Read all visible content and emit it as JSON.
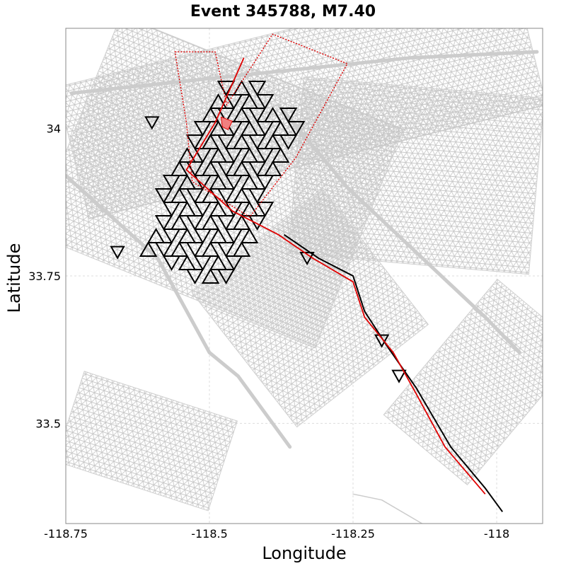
{
  "chart_data": {
    "type": "map",
    "title": "Event 345788, M7.40",
    "xlabel": "Longitude",
    "ylabel": "Latitude",
    "xlim": [
      -118.75,
      -117.92
    ],
    "ylim": [
      33.33,
      34.17
    ],
    "x_ticks": [
      -118.75,
      -118.5,
      -118.25,
      -118
    ],
    "x_tick_labels": [
      "-118.75",
      "-118.5",
      "-118.25",
      "-118"
    ],
    "y_ticks": [
      33.5,
      33.75,
      34
    ],
    "y_tick_labels": [
      "33.5",
      "33.75",
      "34"
    ],
    "grid": true,
    "colors": {
      "background_faults": "#cccccc",
      "ruptured_elements": "#000000",
      "rupture_trace": "#e00000",
      "hypocenter": "#f08080"
    },
    "rupture_trace": [
      [
        -118.44,
        34.12
      ],
      [
        -118.49,
        34.01
      ],
      [
        -118.54,
        33.93
      ],
      [
        -118.46,
        33.86
      ],
      [
        -118.38,
        33.82
      ],
      [
        -118.32,
        33.78
      ],
      [
        -118.25,
        33.74
      ],
      [
        -118.23,
        33.68
      ],
      [
        -118.18,
        33.62
      ],
      [
        -118.14,
        33.55
      ],
      [
        -118.09,
        33.46
      ],
      [
        -118.02,
        33.38
      ]
    ],
    "ruptured_fault_trace": [
      [
        -118.37,
        33.82
      ],
      [
        -118.31,
        33.78
      ],
      [
        -118.25,
        33.75
      ],
      [
        -118.23,
        33.69
      ],
      [
        -118.19,
        33.63
      ],
      [
        -118.14,
        33.56
      ],
      [
        -118.08,
        33.46
      ],
      [
        -118.02,
        33.39
      ],
      [
        -117.99,
        33.35
      ]
    ],
    "rupture_outline": [
      [
        -118.56,
        34.13
      ],
      [
        -118.49,
        34.13
      ],
      [
        -118.47,
        34.04
      ],
      [
        -118.39,
        34.16
      ],
      [
        -118.26,
        34.11
      ],
      [
        -118.35,
        33.95
      ],
      [
        -118.43,
        33.85
      ],
      [
        -118.53,
        33.91
      ],
      [
        -118.54,
        34.01
      ]
    ],
    "hypocenter": [
      -118.47,
      34.01
    ],
    "ruptured_patch_region": {
      "lon": [
        -118.62,
        -118.36
      ],
      "lat": [
        33.76,
        34.08
      ]
    },
    "background_mesh_bands": [
      {
        "lon": [
          -118.75,
          -117.93
        ],
        "lat": [
          33.94,
          34.17
        ]
      },
      {
        "lon": [
          -118.75,
          -118.22
        ],
        "lat": [
          33.71,
          34.11
        ]
      },
      {
        "lon": [
          -118.35,
          -117.93
        ],
        "lat": [
          33.77,
          34.07
        ]
      },
      {
        "lon": [
          -118.47,
          -118.18
        ],
        "lat": [
          33.55,
          33.84
        ]
      },
      {
        "lon": [
          -118.12,
          -117.93
        ],
        "lat": [
          33.42,
          33.72
        ]
      },
      {
        "lon": [
          -118.75,
          -118.47
        ],
        "lat": [
          33.39,
          33.55
        ]
      }
    ],
    "background_fault_traces": [
      [
        [
          -118.75,
          33.92
        ],
        [
          -118.59,
          33.78
        ],
        [
          -118.5,
          33.62
        ],
        [
          -118.45,
          33.58
        ],
        [
          -118.36,
          33.46
        ]
      ],
      [
        [
          -118.38,
          34.04
        ],
        [
          -118.26,
          33.9
        ],
        [
          -118.14,
          33.79
        ],
        [
          -118.02,
          33.68
        ],
        [
          -117.96,
          33.62
        ]
      ],
      [
        [
          -118.74,
          34.06
        ],
        [
          -118.45,
          34.09
        ],
        [
          -118.15,
          34.12
        ],
        [
          -117.93,
          34.13
        ]
      ],
      [
        [
          -118.25,
          33.38
        ],
        [
          -118.2,
          33.37
        ],
        [
          -118.13,
          33.33
        ]
      ]
    ]
  }
}
